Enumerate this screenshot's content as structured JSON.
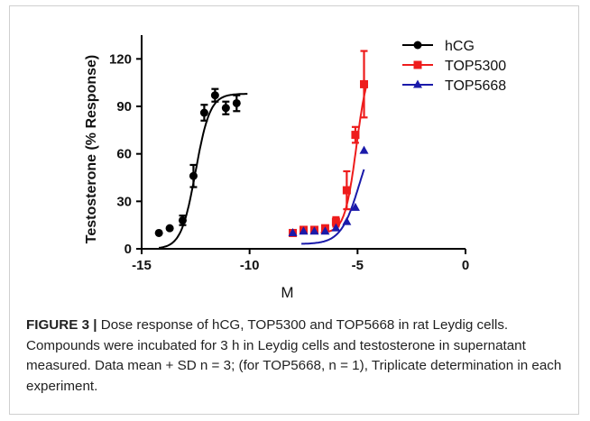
{
  "chart_data": {
    "type": "scatter",
    "title": "",
    "xlabel": "M",
    "ylabel": "Testosterone (% Response)",
    "xlim": [
      -15,
      0
    ],
    "ylim": [
      0,
      135
    ],
    "xticks": [
      -15,
      -10,
      -5,
      0
    ],
    "yticks": [
      0,
      30,
      60,
      90,
      120
    ],
    "xtick_labels": [
      "-15",
      "-10",
      "-5",
      "0"
    ],
    "ytick_labels": [
      "0",
      "30",
      "60",
      "90",
      "120"
    ],
    "legend_position": "top-right",
    "grid": false,
    "series": [
      {
        "name": "hCG",
        "color": "#000000",
        "marker": "circle",
        "points": [
          {
            "x": -14.2,
            "y": 10,
            "err": 0
          },
          {
            "x": -13.7,
            "y": 13,
            "err": 0
          },
          {
            "x": -13.1,
            "y": 18,
            "err": 3
          },
          {
            "x": -12.6,
            "y": 46,
            "err": 7
          },
          {
            "x": -12.1,
            "y": 86,
            "err": 5
          },
          {
            "x": -11.6,
            "y": 97,
            "err": 4
          },
          {
            "x": -11.1,
            "y": 89,
            "err": 4
          },
          {
            "x": -10.6,
            "y": 92,
            "err": 5
          }
        ],
        "fit": {
          "bottom": 0,
          "top": 98,
          "logEC50": -12.5,
          "hill": 1.3,
          "x_from": -14.2,
          "x_to": -10.1
        }
      },
      {
        "name": "TOP5300",
        "color": "#ee1c1c",
        "marker": "square",
        "points": [
          {
            "x": -8.0,
            "y": 10,
            "err": 0
          },
          {
            "x": -7.5,
            "y": 12,
            "err": 0
          },
          {
            "x": -7.0,
            "y": 12,
            "err": 0
          },
          {
            "x": -6.5,
            "y": 13,
            "err": 0
          },
          {
            "x": -6.0,
            "y": 17,
            "err": 3
          },
          {
            "x": -5.5,
            "y": 37,
            "err": 12
          },
          {
            "x": -5.1,
            "y": 72,
            "err": 5
          },
          {
            "x": -4.7,
            "y": 104,
            "err": 21
          }
        ],
        "fit": {
          "bottom": 10,
          "top": 120,
          "logEC50": -5.05,
          "hill": 1.6,
          "x_from": -6.7,
          "x_to": -4.6
        }
      },
      {
        "name": "TOP5668",
        "color": "#1a1aaa",
        "marker": "triangle",
        "points": [
          {
            "x": -8.0,
            "y": 10,
            "err": 0
          },
          {
            "x": -7.5,
            "y": 11,
            "err": 0
          },
          {
            "x": -7.0,
            "y": 11,
            "err": 0
          },
          {
            "x": -6.5,
            "y": 11,
            "err": 0
          },
          {
            "x": -6.0,
            "y": 13,
            "err": 0
          },
          {
            "x": -5.5,
            "y": 17,
            "err": 0
          },
          {
            "x": -5.1,
            "y": 26,
            "err": 0
          },
          {
            "x": -4.7,
            "y": 62,
            "err": 0
          }
        ],
        "fit": {
          "bottom": 3,
          "top": 80,
          "logEC50": -4.9,
          "hill": 1.0,
          "x_from": -7.6,
          "x_to": -4.7
        }
      }
    ]
  },
  "caption": {
    "label": "FIGURE 3 |",
    "text": " Dose response of hCG, TOP5300 and TOP5668 in rat Leydig cells. Compounds were incubated for 3 h in Leydig cells and testosterone in supernatant measured. Data mean + SD n = 3; (for TOP5668, n = 1), Triplicate determination in each experiment."
  }
}
